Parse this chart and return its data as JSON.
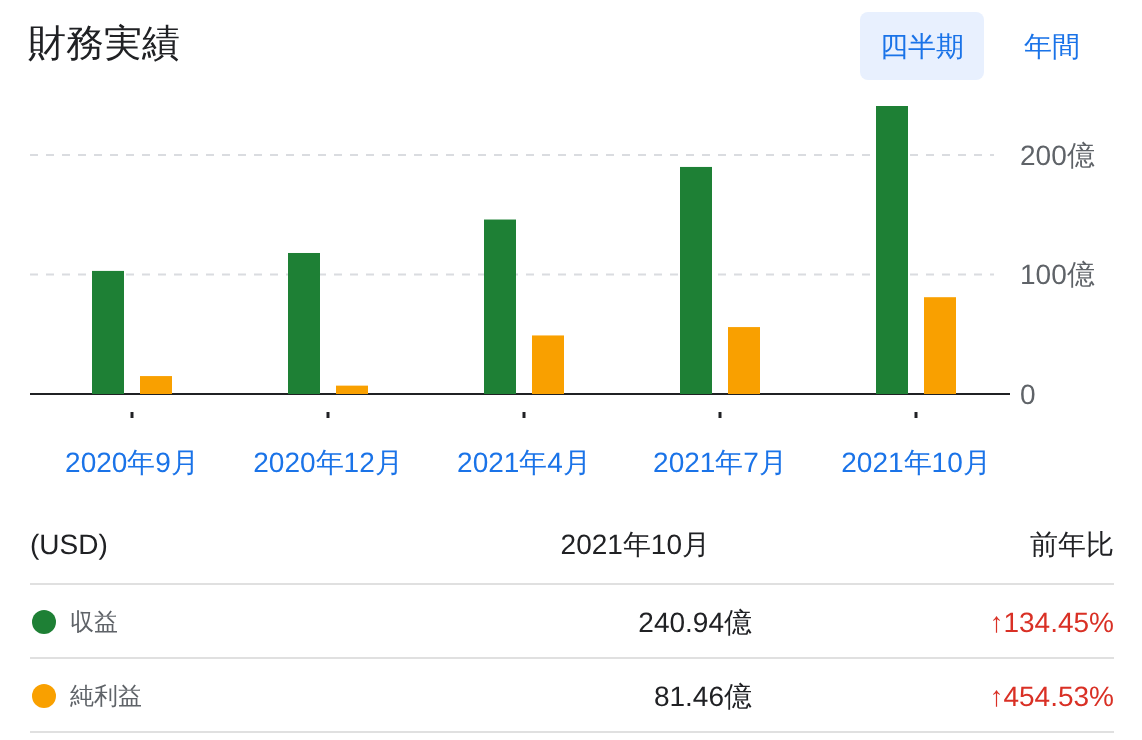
{
  "chart_data": {
    "type": "bar",
    "title": "財務実績",
    "categories": [
      "2020年9月",
      "2020年12月",
      "2021年4月",
      "2021年7月",
      "2021年10月"
    ],
    "series": [
      {
        "name": "収益",
        "color": "#1e8035",
        "values": [
          103,
          118,
          146,
          190,
          241
        ]
      },
      {
        "name": "純利益",
        "color": "#f9a000",
        "values": [
          15,
          7,
          49,
          56,
          81
        ]
      }
    ],
    "ylim": [
      0,
      241
    ],
    "yticks": [
      0,
      {
        "value": 100,
        "label": "100億"
      },
      {
        "value": 200,
        "label": "200億"
      }
    ],
    "grid": "y",
    "legend": "bottom",
    "annotations": [
      "四半期",
      "年間",
      "(USD)",
      "2021年10月",
      "前年比",
      "↑134.45%",
      "↑454.53%",
      "240.94億",
      "81.46億"
    ]
  }
}
